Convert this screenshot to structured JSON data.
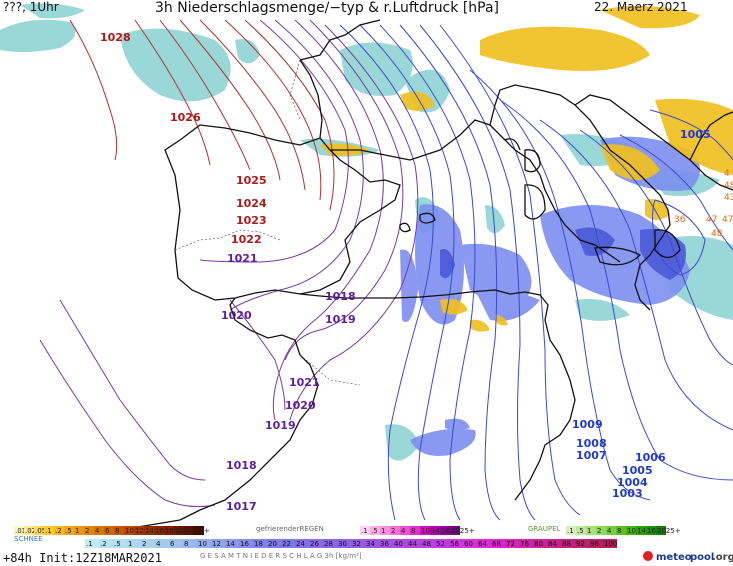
{
  "header": {
    "left": "???, 1Uhr",
    "title": "3h Niederschlagsmenge/−typ & r.Luftdruck [hPa]",
    "date": "22. Maerz 2021"
  },
  "pressure_labels": [
    {
      "text": "1028",
      "tone": "high"
    },
    {
      "text": "1026",
      "tone": "high"
    },
    {
      "text": "1025",
      "tone": "high"
    },
    {
      "text": "1024",
      "tone": "high"
    },
    {
      "text": "1023",
      "tone": "high"
    },
    {
      "text": "1022",
      "tone": "high"
    },
    {
      "text": "1021",
      "tone": "mid"
    },
    {
      "text": "1020",
      "tone": "mid"
    },
    {
      "text": "1018",
      "tone": "mid"
    },
    {
      "text": "1019",
      "tone": "mid"
    },
    {
      "text": "1021",
      "tone": "mid"
    },
    {
      "text": "1020",
      "tone": "mid"
    },
    {
      "text": "1019",
      "tone": "mid"
    },
    {
      "text": "1018",
      "tone": "mid"
    },
    {
      "text": "1017",
      "tone": "mid"
    },
    {
      "text": "1005",
      "tone": "low"
    },
    {
      "text": "1009",
      "tone": "low"
    },
    {
      "text": "1008",
      "tone": "low"
    },
    {
      "text": "1007",
      "tone": "low"
    },
    {
      "text": "1006",
      "tone": "low"
    },
    {
      "text": "1005",
      "tone": "low"
    },
    {
      "text": "1004",
      "tone": "low"
    },
    {
      "text": "1003",
      "tone": "low"
    }
  ],
  "small_labels": [
    "36",
    "47",
    "47",
    "48",
    "43",
    "48",
    "4"
  ],
  "legend": {
    "snow_scale": ".01 .02 .05 .1 .2 .5 1 2 4 6 8 10 12 14 16 18 20 25 25+",
    "snow_label": "SCHNEE",
    "freezing_label": "gefrierenderREGEN",
    "freezing_scale": ".1 .5 1 2 4 8 10 14 16 2025+",
    "graupel_label": "GRAUPEL",
    "graupel_scale": ".1 .5 1 2 4 8 10 14 16 2025+",
    "rain_scale": ".1 .2 .5 1 2 4 6 8 10 12 14 16 18 20 22 24 26 28 30 32 34 36 40 44 48 52 56 60 64 68 72 76 80 84 88 92 96 100",
    "rain_label": "G E S A M T N I E D E R S C H L A G  3h  [kg/m²]"
  },
  "footer": {
    "run": "+84h  Init:12Z18MAR2021",
    "brand_prefix": "meteo",
    "brand_suffix": "pool",
    "brand_tld": ".org"
  },
  "colors": {
    "isobar_high": "#b03030",
    "isobar_mid": "#7a3aa8",
    "isobar_low": "#3a4ad0",
    "label_high": "#b01818",
    "label_mid": "#5a1fa0",
    "label_low": "#1e3ad0",
    "teal_precip": "#9ad8d8",
    "blue_precip": "#7d8ff0",
    "deep_precip": "#4a5ad8",
    "snow_yellow": "#f0c020",
    "coast": "#111111"
  }
}
